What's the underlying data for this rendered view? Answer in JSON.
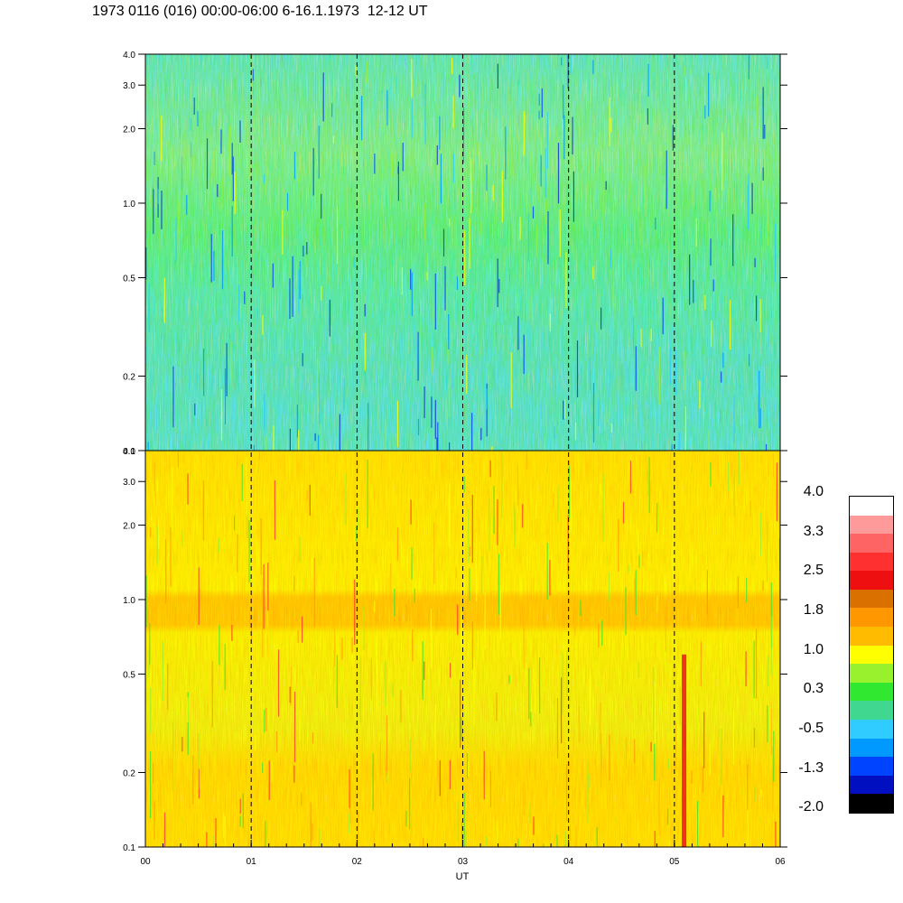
{
  "title": "1973 0116 (016) 00:00-06:00 6-16.1.1973  12-12 UT",
  "chart_data": {
    "type": "heatmap",
    "title": "1973 0116 (016) 00:00-06:00 6-16.1.1973  12-12 UT",
    "xlabel": "UT",
    "x_ticks": [
      "00",
      "01",
      "02",
      "03",
      "04",
      "05",
      "06"
    ],
    "xlim": [
      0,
      6
    ],
    "y_scale": "log",
    "ylim": [
      0.1,
      4.0
    ],
    "y_ticks": [
      4.0,
      3.0,
      2.0,
      1.0,
      0.5,
      0.2,
      0.1
    ],
    "y_tick_labels": [
      "4.0",
      "3.0",
      "2.0",
      "1.0",
      "0.5",
      "0.2",
      "0.1"
    ],
    "dashed_hour_lines": [
      1,
      2,
      3,
      4,
      5
    ],
    "panels": [
      {
        "id": "top",
        "dominant_level": "green/cyan (about -0.5 to 1.0)",
        "feature": "yellow speckles near 0.7-2.0"
      },
      {
        "id": "bottom",
        "dominant_level": "yellow/orange (about 1.0 to 2.0)",
        "feature": "orange band near 0.8-1.0",
        "note": "red streak near 05 UT"
      }
    ],
    "colorbar": {
      "labels": [
        "4.0",
        "3.3",
        "2.5",
        "1.8",
        "1.0",
        "0.3",
        "-0.5",
        "-1.3",
        "-2.0"
      ],
      "colors": [
        "#ffffff",
        "#ff9a9a",
        "#ff6464",
        "#ff3030",
        "#ee1010",
        "#d97000",
        "#ff9800",
        "#ffbb00",
        "#ffff00",
        "#99f02c",
        "#30e830",
        "#40d890",
        "#30ccff",
        "#0099ff",
        "#0044ff",
        "#0010c0",
        "#000000"
      ]
    }
  }
}
